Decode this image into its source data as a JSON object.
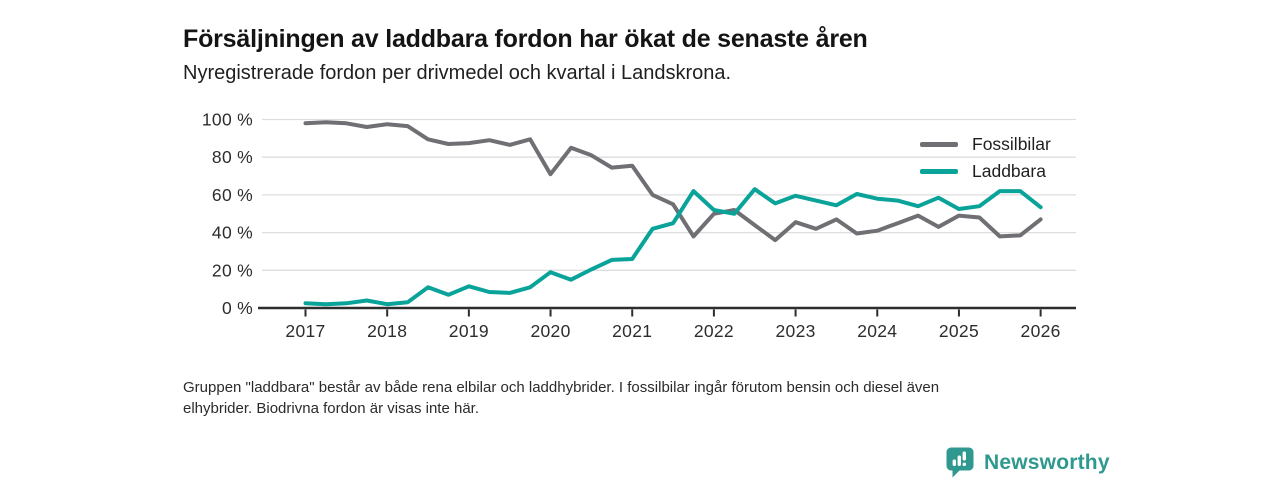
{
  "header": {
    "title": "Försäljningen av laddbara fordon har ökat de senaste åren",
    "subtitle": "Nyregistrerade fordon per drivmedel och kvartal i Landskrona."
  },
  "chart_data": {
    "type": "line",
    "x_unit": "quarter",
    "x_start_year": 2017,
    "points_per_year": 4,
    "x_ticks": [
      2017,
      2018,
      2019,
      2020,
      2021,
      2022,
      2023,
      2024,
      2025,
      2026
    ],
    "ylim": [
      0,
      100
    ],
    "y_ticks": [
      {
        "value": 0,
        "label": "0 %"
      },
      {
        "value": 20,
        "label": "20 %"
      },
      {
        "value": 40,
        "label": "40 %"
      },
      {
        "value": 60,
        "label": "60 %"
      },
      {
        "value": 80,
        "label": "80 %"
      },
      {
        "value": 100,
        "label": "100 %"
      }
    ],
    "grid": "horizontal",
    "legend_position": "top-right",
    "series": [
      {
        "name": "Fossilbilar",
        "color": "#6f6f74",
        "values": [
          98,
          98.5,
          98,
          96,
          97.5,
          96.5,
          89.5,
          87,
          87.5,
          89,
          86.5,
          89.5,
          71,
          85,
          81,
          74.5,
          75.5,
          60,
          55,
          38,
          50,
          52,
          44,
          36,
          45.5,
          42,
          47,
          39.5,
          41,
          45,
          49,
          43,
          49,
          48,
          38,
          38.5,
          47
        ]
      },
      {
        "name": "Laddbara",
        "color": "#09a39a",
        "values": [
          2.5,
          2,
          2.5,
          4,
          2,
          3,
          11,
          7,
          11.5,
          8.5,
          8,
          11,
          19,
          15,
          20.5,
          25.5,
          26,
          42,
          45,
          62,
          52,
          50,
          63,
          55.5,
          59.5,
          57,
          54.5,
          60.5,
          58,
          57,
          54,
          58.5,
          52.5,
          54,
          62,
          62,
          53.5
        ]
      }
    ],
    "axis_color": "#2d2d2d",
    "grid_color": "#dedede",
    "tick_label_color": "#2d2d2d"
  },
  "footer": {
    "line1": "Gruppen \"laddbara\" består av både rena elbilar och laddhybrider. I fossilbilar ingår förutom bensin och diesel även",
    "line2": "elhybrider. Biodrivna fordon är visas inte här."
  },
  "logo": {
    "text": "Newsworthy",
    "color": "#2f988f",
    "icon": "bar-chart-badge-icon"
  }
}
